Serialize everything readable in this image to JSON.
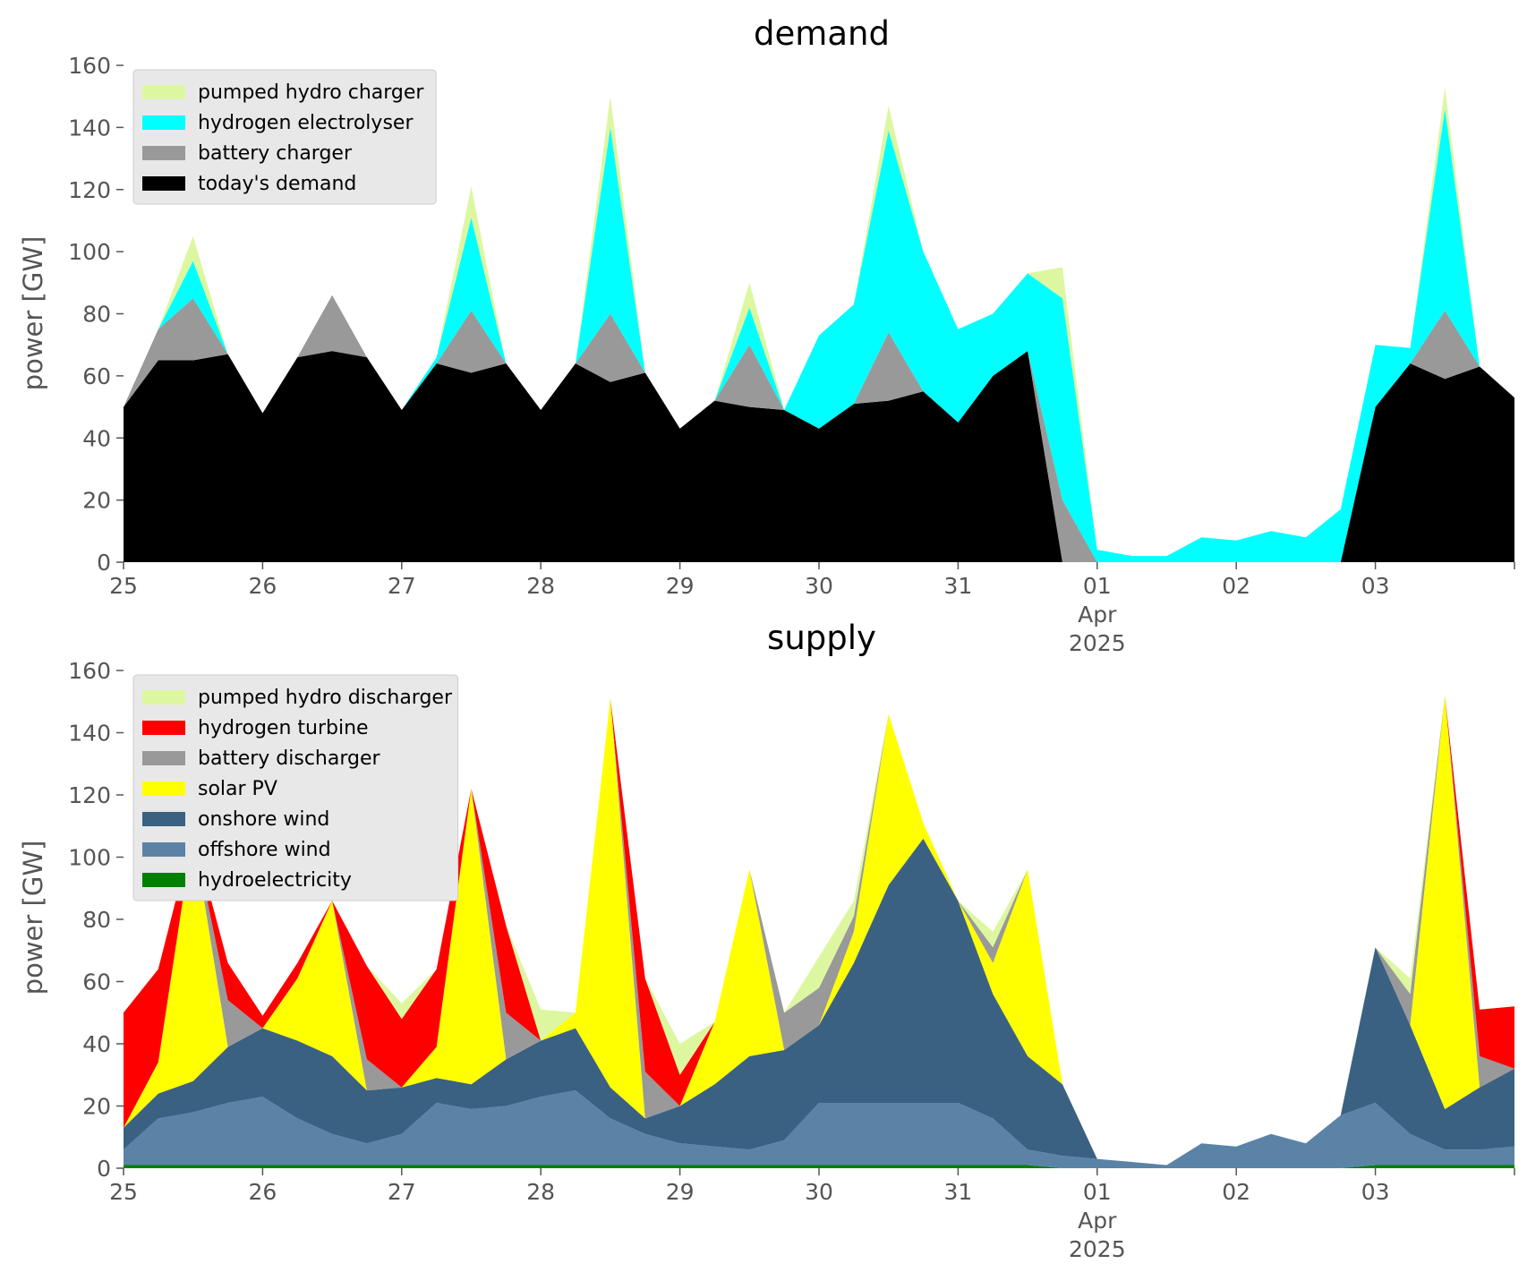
{
  "chart_data": [
    {
      "type": "area",
      "stacked": true,
      "title": "demand",
      "ylabel": "power [GW]",
      "xlabel": "",
      "ylim": [
        0,
        160
      ],
      "yticks": [
        0,
        20,
        40,
        60,
        80,
        100,
        120,
        140,
        160
      ],
      "xticks": [
        "25",
        "26",
        "27",
        "28",
        "29",
        "30",
        "31",
        "01",
        "02",
        "03"
      ],
      "xtick_sublabel": {
        "tick": "01",
        "lines": [
          "Apr",
          "2025"
        ]
      },
      "grid": false,
      "legend": "top-left",
      "x": [
        "2025-03-25",
        "2025-03-25 06:00",
        "2025-03-25 12:00",
        "2025-03-25 18:00",
        "2025-03-26",
        "2025-03-26 06:00",
        "2025-03-26 12:00",
        "2025-03-26 18:00",
        "2025-03-27",
        "2025-03-27 06:00",
        "2025-03-27 12:00",
        "2025-03-27 18:00",
        "2025-03-28",
        "2025-03-28 06:00",
        "2025-03-28 12:00",
        "2025-03-28 18:00",
        "2025-03-29",
        "2025-03-29 06:00",
        "2025-03-29 12:00",
        "2025-03-29 18:00",
        "2025-03-30",
        "2025-03-30 06:00",
        "2025-03-30 12:00",
        "2025-03-30 18:00",
        "2025-03-31",
        "2025-03-31 06:00",
        "2025-03-31 12:00",
        "2025-03-31 18:00",
        "2025-04-01",
        "2025-04-01 06:00",
        "2025-04-01 12:00",
        "2025-04-01 18:00",
        "2025-04-02",
        "2025-04-02 06:00",
        "2025-04-02 12:00",
        "2025-04-02 18:00",
        "2025-04-03",
        "2025-04-03 06:00",
        "2025-04-03 12:00",
        "2025-04-03 18:00",
        "2025-04-04"
      ],
      "series": [
        {
          "name": "today's demand",
          "color": "#000000",
          "values": [
            50,
            65,
            65,
            67,
            48,
            66,
            68,
            66,
            49,
            64,
            61,
            64,
            49,
            64,
            58,
            61,
            43,
            52,
            50,
            49,
            43,
            51,
            52,
            55,
            45,
            60,
            68,
            0,
            0,
            0,
            0,
            0,
            0,
            0,
            0,
            0,
            50,
            64,
            59,
            63,
            53
          ]
        },
        {
          "name": "battery charger",
          "color": "#999999",
          "values": [
            0,
            10,
            20,
            0,
            0,
            0,
            18,
            0,
            0,
            0,
            20,
            0,
            0,
            0,
            22,
            0,
            0,
            0,
            20,
            0,
            0,
            0,
            22,
            0,
            0,
            0,
            0,
            20,
            0,
            0,
            0,
            0,
            0,
            0,
            0,
            0,
            0,
            0,
            22,
            0,
            0
          ]
        },
        {
          "name": "hydrogen electrolyser",
          "color": "#00ffff",
          "values": [
            0,
            0,
            12,
            0,
            0,
            0,
            0,
            0,
            0,
            2,
            30,
            0,
            0,
            0,
            60,
            0,
            0,
            0,
            12,
            0,
            30,
            32,
            65,
            45,
            30,
            20,
            25,
            65,
            4,
            2,
            2,
            8,
            7,
            10,
            8,
            17,
            20,
            5,
            65,
            0,
            0
          ]
        },
        {
          "name": "pumped hydro charger",
          "color": "#ddf7a1",
          "values": [
            0,
            0,
            8,
            0,
            0,
            0,
            0,
            0,
            0,
            0,
            10,
            0,
            0,
            0,
            10,
            0,
            0,
            0,
            8,
            0,
            0,
            0,
            8,
            0,
            0,
            0,
            0,
            10,
            0,
            0,
            0,
            0,
            0,
            0,
            0,
            0,
            0,
            0,
            7,
            0,
            0
          ]
        }
      ]
    },
    {
      "type": "area",
      "stacked": true,
      "title": "supply",
      "ylabel": "power [GW]",
      "xlabel": "",
      "ylim": [
        0,
        160
      ],
      "yticks": [
        0,
        20,
        40,
        60,
        80,
        100,
        120,
        140,
        160
      ],
      "xticks": [
        "25",
        "26",
        "27",
        "28",
        "29",
        "30",
        "31",
        "01",
        "02",
        "03"
      ],
      "xtick_sublabel": {
        "tick": "01",
        "lines": [
          "Apr",
          "2025"
        ]
      },
      "grid": false,
      "legend": "top-left",
      "x": [
        "2025-03-25",
        "2025-03-25 06:00",
        "2025-03-25 12:00",
        "2025-03-25 18:00",
        "2025-03-26",
        "2025-03-26 06:00",
        "2025-03-26 12:00",
        "2025-03-26 18:00",
        "2025-03-27",
        "2025-03-27 06:00",
        "2025-03-27 12:00",
        "2025-03-27 18:00",
        "2025-03-28",
        "2025-03-28 06:00",
        "2025-03-28 12:00",
        "2025-03-28 18:00",
        "2025-03-29",
        "2025-03-29 06:00",
        "2025-03-29 12:00",
        "2025-03-29 18:00",
        "2025-03-30",
        "2025-03-30 06:00",
        "2025-03-30 12:00",
        "2025-03-30 18:00",
        "2025-03-31",
        "2025-03-31 06:00",
        "2025-03-31 12:00",
        "2025-03-31 18:00",
        "2025-04-01",
        "2025-04-01 06:00",
        "2025-04-01 12:00",
        "2025-04-01 18:00",
        "2025-04-02",
        "2025-04-02 06:00",
        "2025-04-02 12:00",
        "2025-04-02 18:00",
        "2025-04-03",
        "2025-04-03 06:00",
        "2025-04-03 12:00",
        "2025-04-03 18:00",
        "2025-04-04"
      ],
      "series": [
        {
          "name": "hydroelectricity",
          "color": "#008000",
          "values": [
            1,
            1,
            1,
            1,
            1,
            1,
            1,
            1,
            1,
            1,
            1,
            1,
            1,
            1,
            1,
            1,
            1,
            1,
            1,
            1,
            1,
            1,
            1,
            1,
            1,
            1,
            1,
            0,
            0,
            0,
            0,
            0,
            0,
            0,
            0,
            0,
            1,
            1,
            1,
            1,
            1
          ]
        },
        {
          "name": "offshore wind",
          "color": "#5b83a6",
          "values": [
            5,
            15,
            17,
            20,
            22,
            15,
            10,
            7,
            10,
            20,
            18,
            19,
            22,
            24,
            15,
            10,
            7,
            6,
            5,
            8,
            20,
            20,
            20,
            20,
            20,
            15,
            5,
            4,
            3,
            2,
            1,
            8,
            7,
            11,
            8,
            17,
            20,
            10,
            5,
            5,
            6
          ]
        },
        {
          "name": "onshore wind",
          "color": "#3b6182",
          "values": [
            7,
            8,
            10,
            18,
            22,
            25,
            25,
            17,
            15,
            8,
            8,
            15,
            18,
            20,
            10,
            5,
            12,
            20,
            30,
            29,
            25,
            45,
            70,
            85,
            65,
            40,
            30,
            23,
            0,
            0,
            0,
            0,
            0,
            0,
            0,
            0,
            50,
            35,
            13,
            20,
            25
          ]
        },
        {
          "name": "solar PV",
          "color": "#ffff00",
          "values": [
            0,
            10,
            80,
            0,
            0,
            20,
            50,
            0,
            0,
            10,
            95,
            0,
            0,
            5,
            125,
            0,
            0,
            20,
            60,
            0,
            0,
            10,
            55,
            5,
            0,
            10,
            60,
            0,
            0,
            0,
            0,
            0,
            0,
            0,
            0,
            0,
            0,
            0,
            133,
            0,
            0
          ]
        },
        {
          "name": "battery discharger",
          "color": "#999999",
          "values": [
            0,
            0,
            0,
            15,
            0,
            0,
            0,
            10,
            0,
            0,
            0,
            15,
            0,
            0,
            0,
            15,
            0,
            0,
            0,
            12,
            12,
            5,
            0,
            0,
            0,
            5,
            0,
            0,
            0,
            0,
            0,
            0,
            0,
            0,
            0,
            0,
            0,
            10,
            0,
            10,
            0
          ]
        },
        {
          "name": "hydrogen turbine",
          "color": "#ff0000",
          "values": [
            37,
            30,
            0,
            12,
            4,
            5,
            0,
            30,
            22,
            25,
            0,
            28,
            0,
            0,
            0,
            30,
            10,
            0,
            0,
            0,
            0,
            0,
            0,
            0,
            0,
            0,
            0,
            0,
            0,
            0,
            0,
            0,
            0,
            0,
            0,
            0,
            0,
            0,
            0,
            15,
            20
          ]
        },
        {
          "name": "pumped hydro discharger",
          "color": "#ddf7a1",
          "values": [
            0,
            0,
            0,
            0,
            0,
            0,
            0,
            0,
            5,
            0,
            0,
            0,
            10,
            0,
            0,
            0,
            10,
            0,
            0,
            0,
            10,
            5,
            0,
            0,
            0,
            5,
            0,
            0,
            0,
            0,
            0,
            0,
            0,
            0,
            0,
            0,
            0,
            5,
            0,
            0,
            0
          ]
        }
      ]
    }
  ]
}
